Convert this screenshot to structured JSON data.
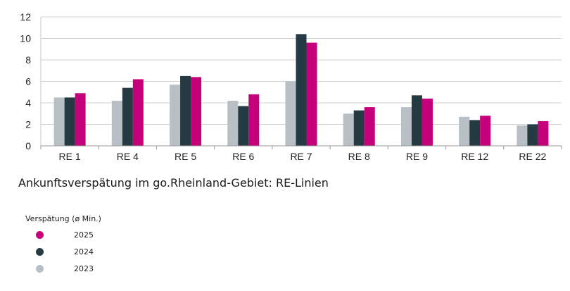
{
  "caption": "Ankunftsverspätung im go.Rheinland-Gebiet: RE-Linien",
  "legend": {
    "title": "Verspätung (ø Min.)",
    "items": [
      {
        "label": "2025",
        "color": "#C4007A"
      },
      {
        "label": "2024",
        "color": "#263A44"
      },
      {
        "label": "2023",
        "color": "#B8C0C6"
      }
    ]
  },
  "chart_data": {
    "type": "bar",
    "title": "",
    "xlabel": "",
    "ylabel": "",
    "ylim": [
      0,
      12
    ],
    "yticks": [
      0,
      2,
      4,
      6,
      8,
      10,
      12
    ],
    "grid": true,
    "legend_position": "bottom-left",
    "categories": [
      "RE 1",
      "RE 4",
      "RE 5",
      "RE 6",
      "RE 7",
      "RE 8",
      "RE 9",
      "RE 12",
      "RE 22"
    ],
    "series": [
      {
        "name": "2023",
        "color": "#B8C0C6",
        "values": [
          4.5,
          4.2,
          5.7,
          4.2,
          6.0,
          3.0,
          3.6,
          2.7,
          1.9
        ]
      },
      {
        "name": "2024",
        "color": "#263A44",
        "values": [
          4.5,
          5.4,
          6.5,
          3.7,
          10.4,
          3.3,
          4.7,
          2.4,
          2.0
        ]
      },
      {
        "name": "2025",
        "color": "#C4007A",
        "values": [
          4.9,
          6.2,
          6.4,
          4.8,
          9.6,
          3.6,
          4.4,
          2.8,
          2.3
        ]
      }
    ]
  }
}
